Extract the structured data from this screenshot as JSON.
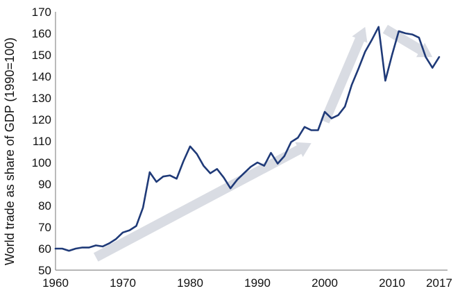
{
  "chart_data": {
    "type": "line",
    "title": "",
    "xlabel": "",
    "ylabel": "World trade as share of GDP (1990=100)",
    "xlim": [
      1960,
      2017
    ],
    "ylim": [
      50,
      170
    ],
    "x_ticks": [
      1960,
      1970,
      1980,
      1990,
      2000,
      2010,
      2017
    ],
    "y_ticks": [
      50,
      60,
      70,
      80,
      90,
      100,
      110,
      120,
      130,
      140,
      150,
      160,
      170
    ],
    "grid": false,
    "series": [
      {
        "color": "#1f3a78",
        "x": [
          1960,
          1961,
          1962,
          1963,
          1964,
          1965,
          1966,
          1967,
          1968,
          1969,
          1970,
          1971,
          1972,
          1973,
          1974,
          1975,
          1976,
          1977,
          1978,
          1979,
          1980,
          1981,
          1982,
          1983,
          1984,
          1985,
          1986,
          1987,
          1988,
          1989,
          1990,
          1991,
          1992,
          1993,
          1994,
          1995,
          1996,
          1997,
          1998,
          1999,
          2000,
          2001,
          2002,
          2003,
          2004,
          2005,
          2006,
          2007,
          2008,
          2009,
          2010,
          2011,
          2012,
          2013,
          2014,
          2015,
          2016,
          2017
        ],
        "y": [
          60,
          60,
          59,
          60,
          60.5,
          60.5,
          61.5,
          61,
          62.5,
          64.5,
          67.5,
          68.5,
          70.5,
          79,
          95.5,
          91,
          93.5,
          94,
          92.5,
          100.5,
          107.5,
          104,
          98.5,
          95,
          97,
          93,
          88,
          92,
          95,
          98,
          100,
          98.5,
          104.5,
          99.5,
          103,
          109.5,
          111.5,
          116.5,
          115,
          115,
          123.5,
          120.5,
          122,
          126,
          136,
          143.5,
          151.5,
          157,
          163,
          138,
          150,
          161,
          160,
          159.5,
          158,
          149,
          144,
          149
        ]
      }
    ],
    "annotations": [
      {
        "type": "trend-arrow",
        "from": [
          1966,
          56
        ],
        "to": [
          1998,
          109
        ],
        "color": "#d9dce3"
      },
      {
        "type": "trend-arrow",
        "from": [
          2000,
          119
        ],
        "to": [
          2006,
          163
        ],
        "color": "#d9dce3"
      },
      {
        "type": "trend-arrow",
        "from": [
          2009,
          162
        ],
        "to": [
          2016,
          149
        ],
        "color": "#d9dce3"
      }
    ],
    "axis_color": "#8c8c8c"
  }
}
